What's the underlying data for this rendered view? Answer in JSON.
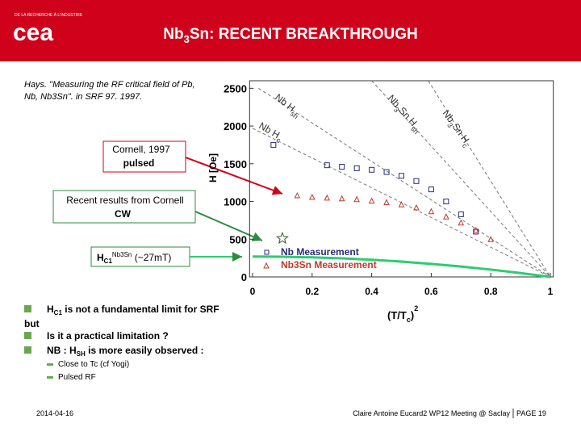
{
  "header": {
    "logo": "cea",
    "logo_tagline": "DE LA RECHERCHE À L'INDUSTRIE",
    "title_parts": [
      "Nb",
      "3",
      "Sn: RECENT BREAKTHROUGH"
    ]
  },
  "citation": [
    "Hays. \"Measuring the RF critical field of Pb,",
    "Nb, Nb3Sn\". in SRF 97. 1997."
  ],
  "callouts": [
    {
      "lines": [
        "Cornell, 1997",
        "pulsed"
      ]
    },
    {
      "lines": [
        "Recent results from Cornell",
        "CW"
      ]
    },
    {
      "parts": [
        "H",
        "C1",
        "Nb3Sn",
        " (~27mT)"
      ]
    }
  ],
  "chart_data": {
    "type": "scatter",
    "x_label_parts": [
      "(T/T",
      "c",
      ")",
      "2"
    ],
    "y_label": "H [Oe]",
    "xlim": [
      -0.01,
      1.01
    ],
    "ylim": [
      0,
      2600
    ],
    "xticks": [
      0,
      0.2,
      0.4,
      0.6,
      0.8,
      1
    ],
    "yticks": [
      0,
      500,
      1000,
      1500,
      2000,
      2500
    ],
    "series": [
      {
        "name": "Nb Measurement",
        "color": "#2a2a7a",
        "marker": "square",
        "x": [
          0.07,
          0.25,
          0.3,
          0.35,
          0.4,
          0.45,
          0.5,
          0.55,
          0.6,
          0.65,
          0.7,
          0.75
        ],
        "values": [
          1750,
          1480,
          1460,
          1440,
          1420,
          1390,
          1340,
          1270,
          1160,
          1000,
          830,
          600
        ]
      },
      {
        "name": "Nb3Sn Measurement",
        "color": "#c0392b",
        "marker": "triangle",
        "x": [
          0.15,
          0.2,
          0.25,
          0.3,
          0.35,
          0.4,
          0.45,
          0.5,
          0.55,
          0.6,
          0.65,
          0.7,
          0.75,
          0.8
        ],
        "values": [
          1080,
          1060,
          1050,
          1040,
          1030,
          1010,
          990,
          960,
          920,
          870,
          800,
          720,
          620,
          500
        ]
      }
    ],
    "hc1_curve": {
      "color": "#2ecc71",
      "x": [
        0,
        0.1,
        0.2,
        0.3,
        0.4,
        0.5,
        0.6,
        0.7,
        0.8,
        0.9,
        1
      ],
      "values": [
        270,
        267,
        259,
        246,
        227,
        203,
        173,
        138,
        97,
        51,
        0
      ]
    },
    "highlight_point": {
      "x": 0.1,
      "y": 510
    },
    "reference_lines": [
      {
        "label_parts": [
          "Nb H",
          "sh"
        ],
        "x": [
          0.02,
          1
        ],
        "values": [
          2500,
          0
        ]
      },
      {
        "label_parts": [
          "Nb H",
          "c"
        ],
        "x": [
          0,
          1
        ],
        "values": [
          1970,
          0
        ]
      },
      {
        "label_parts": [
          "Nb",
          "3",
          "Sn H",
          "sh"
        ],
        "x": [
          0.4,
          1
        ],
        "values": [
          2600,
          0
        ]
      },
      {
        "label_parts": [
          "Nb",
          "3",
          "Sn H",
          "c"
        ],
        "x": [
          0.59,
          1
        ],
        "values": [
          2600,
          0
        ]
      }
    ]
  },
  "bullets": [
    {
      "parts": [
        "H",
        "C1",
        " is not a fundamental limit for SRF"
      ]
    },
    {
      "parts": [
        "but"
      ]
    },
    {
      "parts": [
        "Is it a practical limitation ?"
      ]
    },
    {
      "parts": [
        "NB : H",
        "SH",
        " is more easily observed :"
      ]
    }
  ],
  "sub_bullets": [
    "Close to Tc (cf Yogi)",
    "Pulsed RF"
  ],
  "footer": {
    "date": "2014-04-16",
    "event": "Claire Antoine Eucard2 WP12 Meeting @ Saclay",
    "page": "PAGE 19"
  }
}
